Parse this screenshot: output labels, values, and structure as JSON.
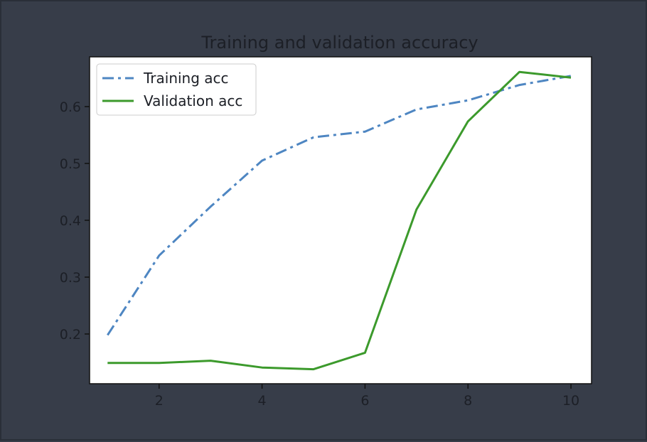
{
  "chart_data": {
    "type": "line",
    "title": "Training and validation accuracy",
    "xlabel": "",
    "ylabel": "",
    "x": [
      1,
      2,
      3,
      4,
      5,
      6,
      7,
      8,
      9,
      10
    ],
    "xlim": [
      0.65,
      10.4
    ],
    "ylim": [
      0.1125,
      0.6875
    ],
    "xticks": [
      2,
      4,
      6,
      8,
      10
    ],
    "yticks": [
      0.2,
      0.3,
      0.4,
      0.5,
      0.6
    ],
    "xtick_labels": [
      "2",
      "4",
      "6",
      "8",
      "10"
    ],
    "ytick_labels": [
      "0.2",
      "0.3",
      "0.4",
      "0.5",
      "0.6"
    ],
    "grid": false,
    "legend": "upper-left",
    "series": [
      {
        "name": "Training acc",
        "style": "dashdot",
        "color": "#4e86c2",
        "values": [
          0.198,
          0.338,
          0.424,
          0.505,
          0.546,
          0.556,
          0.595,
          0.611,
          0.638,
          0.654
        ]
      },
      {
        "name": "Validation acc",
        "style": "solid",
        "color": "#3c9a2c",
        "values": [
          0.149,
          0.149,
          0.153,
          0.141,
          0.138,
          0.167,
          0.419,
          0.574,
          0.661,
          0.651
        ]
      }
    ],
    "colors": {
      "figure_background": "#373d49",
      "axes_background": "#ffffff",
      "text": "#1c1f26"
    }
  }
}
